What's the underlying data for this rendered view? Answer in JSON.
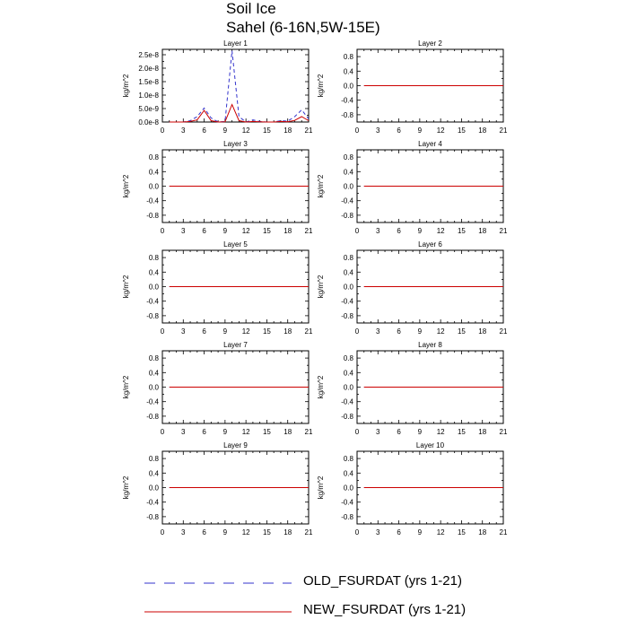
{
  "figure": {
    "title": "Soil Ice",
    "subtitle": "Sahel (6-16N,5W-15E)"
  },
  "legend": {
    "entries": [
      {
        "label": "OLD_FSURDAT (yrs 1-21)",
        "color": "#3333cc",
        "dash": "dashed"
      },
      {
        "label": "NEW_FSURDAT (yrs 1-21)",
        "color": "#cc0000",
        "dash": "solid"
      }
    ]
  },
  "chart_data": [
    {
      "type": "line",
      "title": "Layer 1",
      "ylabel": "kg/m^2",
      "xlim": [
        0,
        21
      ],
      "ylim": [
        0,
        2.7e-08
      ],
      "xticks": [
        "0",
        "3",
        "6",
        "9",
        "12",
        "15",
        "18",
        "21"
      ],
      "yticks": [
        0,
        5e-09,
        1e-08,
        1.5e-08,
        2e-08,
        2.5e-08
      ],
      "yticklabels": [
        "0.0e-8",
        "5.0e-9",
        "1.0e-8",
        "1.5e-8",
        "2.0e-8",
        "2.5e-8"
      ],
      "x": [
        1,
        2,
        3,
        4,
        5,
        6,
        7,
        8,
        9,
        10,
        11,
        12,
        13,
        14,
        15,
        16,
        17,
        18,
        19,
        20,
        21
      ],
      "series": [
        {
          "name": "OLD_FSURDAT (yrs 1-21)",
          "color": "#3333cc",
          "dash": "dashed",
          "values": [
            0,
            0,
            0,
            5e-10,
            2e-09,
            5.2e-09,
            1.5e-09,
            0,
            2e-10,
            2.65e-08,
            2e-09,
            0,
            8e-10,
            2e-10,
            0,
            0,
            5e-10,
            3e-10,
            2e-09,
            4.5e-09,
            1.2e-09
          ]
        },
        {
          "name": "NEW_FSURDAT (yrs 1-21)",
          "color": "#cc0000",
          "dash": "solid",
          "values": [
            0,
            0,
            0,
            2e-10,
            8e-10,
            4.3e-09,
            5e-10,
            0,
            1e-10,
            6.5e-09,
            5e-10,
            0,
            2e-10,
            1e-10,
            0,
            0,
            2e-10,
            1e-10,
            6e-10,
            2e-09,
            5e-10
          ]
        }
      ]
    },
    {
      "type": "line",
      "title": "Layer 2",
      "ylabel": "kg/m^2",
      "xlim": [
        0,
        21
      ],
      "ylim": [
        -1,
        1
      ],
      "xticks": [
        "0",
        "3",
        "6",
        "9",
        "12",
        "15",
        "18",
        "21"
      ],
      "yticks": [
        -0.8,
        -0.4,
        0,
        0.4,
        0.8
      ],
      "yticklabels": [
        "-0.8",
        "-0.4",
        "0.0",
        "0.4",
        "0.8"
      ],
      "x": [
        1,
        2,
        3,
        4,
        5,
        6,
        7,
        8,
        9,
        10,
        11,
        12,
        13,
        14,
        15,
        16,
        17,
        18,
        19,
        20,
        21
      ],
      "series": [
        {
          "name": "OLD_FSURDAT (yrs 1-21)",
          "color": "#3333cc",
          "dash": "dashed",
          "values": [
            0,
            0,
            0,
            0,
            0,
            0,
            0,
            0,
            0,
            0,
            0,
            0,
            0,
            0,
            0,
            0,
            0,
            0,
            0,
            0,
            0
          ]
        },
        {
          "name": "NEW_FSURDAT (yrs 1-21)",
          "color": "#cc0000",
          "dash": "solid",
          "values": [
            0,
            0,
            0,
            0,
            0,
            0,
            0,
            0,
            0,
            0,
            0,
            0,
            0,
            0,
            0,
            0,
            0,
            0,
            0,
            0,
            0
          ]
        }
      ]
    },
    {
      "type": "line",
      "title": "Layer 3",
      "ylabel": "kg/m^2",
      "xlim": [
        0,
        21
      ],
      "ylim": [
        -1,
        1
      ],
      "xticks": [
        "0",
        "3",
        "6",
        "9",
        "12",
        "15",
        "18",
        "21"
      ],
      "yticks": [
        -0.8,
        -0.4,
        0,
        0.4,
        0.8
      ],
      "yticklabels": [
        "-0.8",
        "-0.4",
        "0.0",
        "0.4",
        "0.8"
      ],
      "x": [
        1,
        2,
        3,
        4,
        5,
        6,
        7,
        8,
        9,
        10,
        11,
        12,
        13,
        14,
        15,
        16,
        17,
        18,
        19,
        20,
        21
      ],
      "series": [
        {
          "name": "OLD_FSURDAT (yrs 1-21)",
          "color": "#3333cc",
          "dash": "dashed",
          "values": [
            0,
            0,
            0,
            0,
            0,
            0,
            0,
            0,
            0,
            0,
            0,
            0,
            0,
            0,
            0,
            0,
            0,
            0,
            0,
            0,
            0
          ]
        },
        {
          "name": "NEW_FSURDAT (yrs 1-21)",
          "color": "#cc0000",
          "dash": "solid",
          "values": [
            0,
            0,
            0,
            0,
            0,
            0,
            0,
            0,
            0,
            0,
            0,
            0,
            0,
            0,
            0,
            0,
            0,
            0,
            0,
            0,
            0
          ]
        }
      ]
    },
    {
      "type": "line",
      "title": "Layer 4",
      "ylabel": "kg/m^2",
      "xlim": [
        0,
        21
      ],
      "ylim": [
        -1,
        1
      ],
      "xticks": [
        "0",
        "3",
        "6",
        "9",
        "12",
        "15",
        "18",
        "21"
      ],
      "yticks": [
        -0.8,
        -0.4,
        0,
        0.4,
        0.8
      ],
      "yticklabels": [
        "-0.8",
        "-0.4",
        "0.0",
        "0.4",
        "0.8"
      ],
      "x": [
        1,
        2,
        3,
        4,
        5,
        6,
        7,
        8,
        9,
        10,
        11,
        12,
        13,
        14,
        15,
        16,
        17,
        18,
        19,
        20,
        21
      ],
      "series": [
        {
          "name": "OLD_FSURDAT (yrs 1-21)",
          "color": "#3333cc",
          "dash": "dashed",
          "values": [
            0,
            0,
            0,
            0,
            0,
            0,
            0,
            0,
            0,
            0,
            0,
            0,
            0,
            0,
            0,
            0,
            0,
            0,
            0,
            0,
            0
          ]
        },
        {
          "name": "NEW_FSURDAT (yrs 1-21)",
          "color": "#cc0000",
          "dash": "solid",
          "values": [
            0,
            0,
            0,
            0,
            0,
            0,
            0,
            0,
            0,
            0,
            0,
            0,
            0,
            0,
            0,
            0,
            0,
            0,
            0,
            0,
            0
          ]
        }
      ]
    },
    {
      "type": "line",
      "title": "Layer 5",
      "ylabel": "kg/m^2",
      "xlim": [
        0,
        21
      ],
      "ylim": [
        -1,
        1
      ],
      "xticks": [
        "0",
        "3",
        "6",
        "9",
        "12",
        "15",
        "18",
        "21"
      ],
      "yticks": [
        -0.8,
        -0.4,
        0,
        0.4,
        0.8
      ],
      "yticklabels": [
        "-0.8",
        "-0.4",
        "0.0",
        "0.4",
        "0.8"
      ],
      "x": [
        1,
        2,
        3,
        4,
        5,
        6,
        7,
        8,
        9,
        10,
        11,
        12,
        13,
        14,
        15,
        16,
        17,
        18,
        19,
        20,
        21
      ],
      "series": [
        {
          "name": "OLD_FSURDAT (yrs 1-21)",
          "color": "#3333cc",
          "dash": "dashed",
          "values": [
            0,
            0,
            0,
            0,
            0,
            0,
            0,
            0,
            0,
            0,
            0,
            0,
            0,
            0,
            0,
            0,
            0,
            0,
            0,
            0,
            0
          ]
        },
        {
          "name": "NEW_FSURDAT (yrs 1-21)",
          "color": "#cc0000",
          "dash": "solid",
          "values": [
            0,
            0,
            0,
            0,
            0,
            0,
            0,
            0,
            0,
            0,
            0,
            0,
            0,
            0,
            0,
            0,
            0,
            0,
            0,
            0,
            0
          ]
        }
      ]
    },
    {
      "type": "line",
      "title": "Layer 6",
      "ylabel": "kg/m^2",
      "xlim": [
        0,
        21
      ],
      "ylim": [
        -1,
        1
      ],
      "xticks": [
        "0",
        "3",
        "6",
        "9",
        "12",
        "15",
        "18",
        "21"
      ],
      "yticks": [
        -0.8,
        -0.4,
        0,
        0.4,
        0.8
      ],
      "yticklabels": [
        "-0.8",
        "-0.4",
        "0.0",
        "0.4",
        "0.8"
      ],
      "x": [
        1,
        2,
        3,
        4,
        5,
        6,
        7,
        8,
        9,
        10,
        11,
        12,
        13,
        14,
        15,
        16,
        17,
        18,
        19,
        20,
        21
      ],
      "series": [
        {
          "name": "OLD_FSURDAT (yrs 1-21)",
          "color": "#3333cc",
          "dash": "dashed",
          "values": [
            0,
            0,
            0,
            0,
            0,
            0,
            0,
            0,
            0,
            0,
            0,
            0,
            0,
            0,
            0,
            0,
            0,
            0,
            0,
            0,
            0
          ]
        },
        {
          "name": "NEW_FSURDAT (yrs 1-21)",
          "color": "#cc0000",
          "dash": "solid",
          "values": [
            0,
            0,
            0,
            0,
            0,
            0,
            0,
            0,
            0,
            0,
            0,
            0,
            0,
            0,
            0,
            0,
            0,
            0,
            0,
            0,
            0
          ]
        }
      ]
    },
    {
      "type": "line",
      "title": "Layer 7",
      "ylabel": "kg/m^2",
      "xlim": [
        0,
        21
      ],
      "ylim": [
        -1,
        1
      ],
      "xticks": [
        "0",
        "3",
        "6",
        "9",
        "12",
        "15",
        "18",
        "21"
      ],
      "yticks": [
        -0.8,
        -0.4,
        0,
        0.4,
        0.8
      ],
      "yticklabels": [
        "-0.8",
        "-0.4",
        "0.0",
        "0.4",
        "0.8"
      ],
      "x": [
        1,
        2,
        3,
        4,
        5,
        6,
        7,
        8,
        9,
        10,
        11,
        12,
        13,
        14,
        15,
        16,
        17,
        18,
        19,
        20,
        21
      ],
      "series": [
        {
          "name": "OLD_FSURDAT (yrs 1-21)",
          "color": "#3333cc",
          "dash": "dashed",
          "values": [
            0,
            0,
            0,
            0,
            0,
            0,
            0,
            0,
            0,
            0,
            0,
            0,
            0,
            0,
            0,
            0,
            0,
            0,
            0,
            0,
            0
          ]
        },
        {
          "name": "NEW_FSURDAT (yrs 1-21)",
          "color": "#cc0000",
          "dash": "solid",
          "values": [
            0,
            0,
            0,
            0,
            0,
            0,
            0,
            0,
            0,
            0,
            0,
            0,
            0,
            0,
            0,
            0,
            0,
            0,
            0,
            0,
            0
          ]
        }
      ]
    },
    {
      "type": "line",
      "title": "Layer 8",
      "ylabel": "kg/m^2",
      "xlim": [
        0,
        21
      ],
      "ylim": [
        -1,
        1
      ],
      "xticks": [
        "0",
        "3",
        "6",
        "9",
        "12",
        "15",
        "18",
        "21"
      ],
      "yticks": [
        -0.8,
        -0.4,
        0,
        0.4,
        0.8
      ],
      "yticklabels": [
        "-0.8",
        "-0.4",
        "0.0",
        "0.4",
        "0.8"
      ],
      "x": [
        1,
        2,
        3,
        4,
        5,
        6,
        7,
        8,
        9,
        10,
        11,
        12,
        13,
        14,
        15,
        16,
        17,
        18,
        19,
        20,
        21
      ],
      "series": [
        {
          "name": "OLD_FSURDAT (yrs 1-21)",
          "color": "#3333cc",
          "dash": "dashed",
          "values": [
            0,
            0,
            0,
            0,
            0,
            0,
            0,
            0,
            0,
            0,
            0,
            0,
            0,
            0,
            0,
            0,
            0,
            0,
            0,
            0,
            0
          ]
        },
        {
          "name": "NEW_FSURDAT (yrs 1-21)",
          "color": "#cc0000",
          "dash": "solid",
          "values": [
            0,
            0,
            0,
            0,
            0,
            0,
            0,
            0,
            0,
            0,
            0,
            0,
            0,
            0,
            0,
            0,
            0,
            0,
            0,
            0,
            0
          ]
        }
      ]
    },
    {
      "type": "line",
      "title": "Layer 9",
      "ylabel": "kg/m^2",
      "xlim": [
        0,
        21
      ],
      "ylim": [
        -1,
        1
      ],
      "xticks": [
        "0",
        "3",
        "6",
        "9",
        "12",
        "15",
        "18",
        "21"
      ],
      "yticks": [
        -0.8,
        -0.4,
        0,
        0.4,
        0.8
      ],
      "yticklabels": [
        "-0.8",
        "-0.4",
        "0.0",
        "0.4",
        "0.8"
      ],
      "x": [
        1,
        2,
        3,
        4,
        5,
        6,
        7,
        8,
        9,
        10,
        11,
        12,
        13,
        14,
        15,
        16,
        17,
        18,
        19,
        20,
        21
      ],
      "series": [
        {
          "name": "OLD_FSURDAT (yrs 1-21)",
          "color": "#3333cc",
          "dash": "dashed",
          "values": [
            0,
            0,
            0,
            0,
            0,
            0,
            0,
            0,
            0,
            0,
            0,
            0,
            0,
            0,
            0,
            0,
            0,
            0,
            0,
            0,
            0
          ]
        },
        {
          "name": "NEW_FSURDAT (yrs 1-21)",
          "color": "#cc0000",
          "dash": "solid",
          "values": [
            0,
            0,
            0,
            0,
            0,
            0,
            0,
            0,
            0,
            0,
            0,
            0,
            0,
            0,
            0,
            0,
            0,
            0,
            0,
            0,
            0
          ]
        }
      ]
    },
    {
      "type": "line",
      "title": "Layer 10",
      "ylabel": "kg/m^2",
      "xlim": [
        0,
        21
      ],
      "ylim": [
        -1,
        1
      ],
      "xticks": [
        "0",
        "3",
        "6",
        "9",
        "12",
        "15",
        "18",
        "21"
      ],
      "yticks": [
        -0.8,
        -0.4,
        0,
        0.4,
        0.8
      ],
      "yticklabels": [
        "-0.8",
        "-0.4",
        "0.0",
        "0.4",
        "0.8"
      ],
      "x": [
        1,
        2,
        3,
        4,
        5,
        6,
        7,
        8,
        9,
        10,
        11,
        12,
        13,
        14,
        15,
        16,
        17,
        18,
        19,
        20,
        21
      ],
      "series": [
        {
          "name": "OLD_FSURDAT (yrs 1-21)",
          "color": "#3333cc",
          "dash": "dashed",
          "values": [
            0,
            0,
            0,
            0,
            0,
            0,
            0,
            0,
            0,
            0,
            0,
            0,
            0,
            0,
            0,
            0,
            0,
            0,
            0,
            0,
            0
          ]
        },
        {
          "name": "NEW_FSURDAT (yrs 1-21)",
          "color": "#cc0000",
          "dash": "solid",
          "values": [
            0,
            0,
            0,
            0,
            0,
            0,
            0,
            0,
            0,
            0,
            0,
            0,
            0,
            0,
            0,
            0,
            0,
            0,
            0,
            0,
            0
          ]
        }
      ]
    }
  ]
}
